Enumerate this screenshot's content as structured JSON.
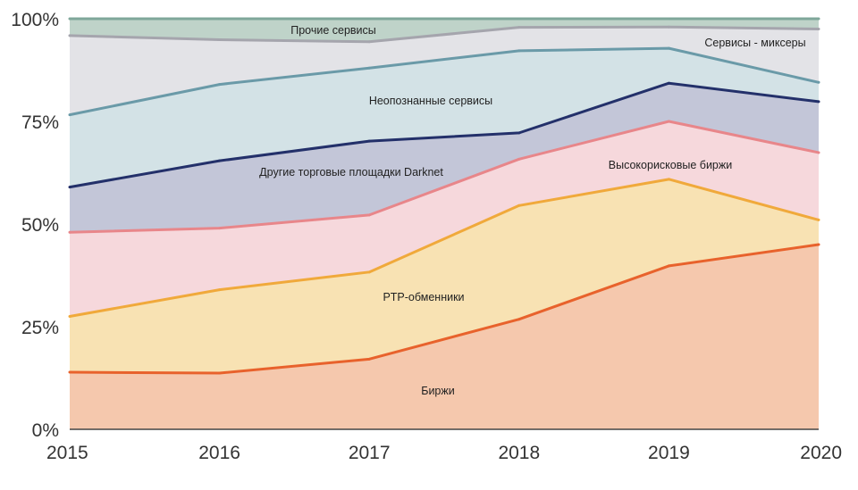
{
  "chart_data": {
    "type": "area",
    "stacked": true,
    "x": [
      "2015",
      "2016",
      "2017",
      "2018",
      "2019",
      "2020"
    ],
    "y_ticks": [
      "0%",
      "25%",
      "50%",
      "75%",
      "100%"
    ],
    "ylim": [
      0,
      100
    ],
    "grid": false,
    "series": [
      {
        "name": "Биржи",
        "color": "#e8622c",
        "fill": "#f5c8ad",
        "cumulative": [
          13.9,
          13.7,
          17.1,
          26.8,
          39.8,
          45.0
        ]
      },
      {
        "name": "PTP-обменники",
        "color": "#f0a93b",
        "fill": "#f8e2b3",
        "cumulative": [
          27.5,
          34.0,
          38.3,
          54.5,
          60.9,
          51.0
        ]
      },
      {
        "name": "Высокорисковые биржи",
        "color": "#e8868a",
        "fill": "#f6d8dc",
        "cumulative": [
          48.0,
          49.0,
          52.2,
          65.8,
          75.0,
          67.4
        ]
      },
      {
        "name": "Другие торговые площадки Darknet",
        "color": "#23306a",
        "fill": "#c3c6d8",
        "cumulative": [
          59.0,
          65.4,
          70.2,
          72.2,
          84.3,
          79.8
        ]
      },
      {
        "name": "Неопознанные сервисы",
        "color": "#6a9aa8",
        "fill": "#d3e2e6",
        "cumulative": [
          76.6,
          84.0,
          88.0,
          92.2,
          92.8,
          84.5
        ]
      },
      {
        "name": "Сервисы - миксеры",
        "color": "#a5a5ad",
        "fill": "#e3e3e7",
        "cumulative": [
          95.9,
          94.9,
          94.4,
          97.9,
          98.0,
          97.5
        ]
      },
      {
        "name": "Прочие сервисы",
        "color": "#7fa79a",
        "fill": "#bfd3c9",
        "cumulative": [
          100,
          100,
          100,
          100,
          100,
          100
        ]
      }
    ]
  }
}
